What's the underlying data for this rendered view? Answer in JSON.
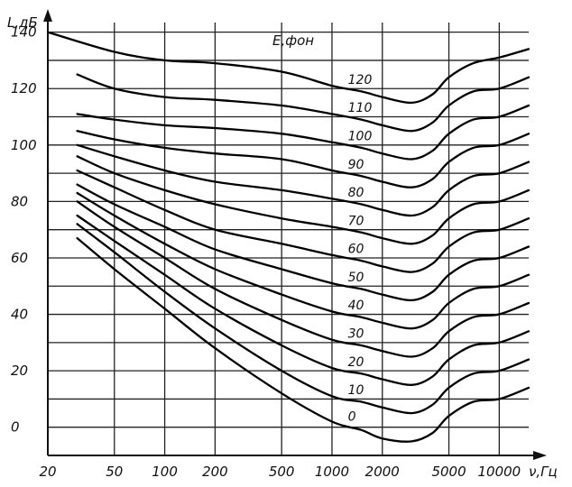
{
  "chart_data": {
    "type": "line",
    "title": "",
    "xlabel": "ν,Гц",
    "ylabel": "L,дБ",
    "legend_title": "E,фон",
    "x_scale": "log",
    "xlim": [
      20,
      15000
    ],
    "ylim": [
      -10,
      145
    ],
    "x_ticks": [
      20,
      50,
      100,
      200,
      500,
      1000,
      2000,
      5000,
      10000
    ],
    "y_ticks": [
      0,
      20,
      40,
      60,
      80,
      100,
      120,
      140
    ],
    "grid": true,
    "series": [
      {
        "name": "120",
        "x": [
          20,
          50,
          100,
          200,
          500,
          1000,
          1500,
          2000,
          3000,
          4000,
          5000,
          7000,
          10000,
          15000
        ],
        "y": [
          140,
          133,
          130,
          129,
          126,
          121,
          119,
          117,
          115,
          118,
          124,
          129,
          131,
          134
        ]
      },
      {
        "name": "110",
        "x": [
          30,
          50,
          100,
          200,
          500,
          1000,
          1500,
          2000,
          3000,
          4000,
          5000,
          7000,
          10000,
          15000
        ],
        "y": [
          125,
          120,
          117,
          116,
          114,
          111,
          109,
          107,
          105,
          108,
          114,
          119,
          120,
          124
        ]
      },
      {
        "name": "100",
        "x": [
          30,
          50,
          100,
          200,
          500,
          1000,
          1500,
          2000,
          3000,
          4000,
          5000,
          7000,
          10000,
          15000
        ],
        "y": [
          111,
          109,
          107,
          106,
          104,
          101,
          99,
          97,
          95,
          98,
          104,
          109,
          110,
          114
        ]
      },
      {
        "name": "90",
        "x": [
          30,
          50,
          100,
          200,
          500,
          1000,
          1500,
          2000,
          3000,
          4000,
          5000,
          7000,
          10000,
          15000
        ],
        "y": [
          105,
          102,
          99,
          97,
          95,
          91,
          89,
          87,
          85,
          88,
          94,
          99,
          100,
          104
        ]
      },
      {
        "name": "80",
        "x": [
          30,
          50,
          100,
          200,
          500,
          1000,
          1500,
          2000,
          3000,
          4000,
          5000,
          7000,
          10000,
          15000
        ],
        "y": [
          100,
          96,
          91,
          87,
          84,
          81,
          79,
          77,
          75,
          78,
          84,
          89,
          90,
          94
        ]
      },
      {
        "name": "70",
        "x": [
          30,
          50,
          100,
          200,
          500,
          1000,
          1500,
          2000,
          3000,
          4000,
          5000,
          7000,
          10000,
          15000
        ],
        "y": [
          96,
          90,
          84,
          79,
          74,
          71,
          69,
          67,
          65,
          68,
          74,
          79,
          80,
          84
        ]
      },
      {
        "name": "60",
        "x": [
          30,
          50,
          100,
          200,
          500,
          1000,
          1500,
          2000,
          3000,
          4000,
          5000,
          7000,
          10000,
          15000
        ],
        "y": [
          91,
          85,
          77,
          70,
          65,
          61,
          59,
          57,
          55,
          58,
          64,
          69,
          70,
          74
        ]
      },
      {
        "name": "50",
        "x": [
          30,
          50,
          100,
          200,
          500,
          1000,
          1500,
          2000,
          3000,
          4000,
          5000,
          7000,
          10000,
          15000
        ],
        "y": [
          86,
          79,
          71,
          63,
          56,
          51,
          49,
          47,
          45,
          48,
          54,
          59,
          60,
          64
        ]
      },
      {
        "name": "40",
        "x": [
          30,
          50,
          100,
          200,
          500,
          1000,
          1500,
          2000,
          3000,
          4000,
          5000,
          7000,
          10000,
          15000
        ],
        "y": [
          83,
          75,
          65,
          56,
          47,
          41,
          39,
          37,
          35,
          38,
          44,
          49,
          50,
          54
        ]
      },
      {
        "name": "30",
        "x": [
          30,
          50,
          100,
          200,
          500,
          1000,
          1500,
          2000,
          3000,
          4000,
          5000,
          7000,
          10000,
          15000
        ],
        "y": [
          80,
          71,
          60,
          49,
          38,
          31,
          29,
          27,
          25,
          28,
          34,
          39,
          40,
          44
        ]
      },
      {
        "name": "20",
        "x": [
          30,
          50,
          100,
          200,
          500,
          1000,
          1500,
          2000,
          3000,
          4000,
          5000,
          7000,
          10000,
          15000
        ],
        "y": [
          75,
          66,
          54,
          42,
          29,
          21,
          19,
          17,
          15,
          18,
          24,
          29,
          30,
          34
        ]
      },
      {
        "name": "10",
        "x": [
          30,
          50,
          100,
          200,
          500,
          1000,
          1500,
          2000,
          3000,
          4000,
          5000,
          7000,
          10000,
          15000
        ],
        "y": [
          72,
          62,
          48,
          35,
          20,
          11,
          9,
          7,
          5,
          8,
          14,
          19,
          20,
          24
        ]
      },
      {
        "name": "0",
        "x": [
          30,
          50,
          100,
          200,
          500,
          1000,
          1500,
          2000,
          3000,
          4000,
          5000,
          7000,
          10000,
          15000
        ],
        "y": [
          67,
          56,
          42,
          28,
          12,
          2,
          -1,
          -4,
          -5,
          -2,
          4,
          9,
          10,
          14
        ]
      }
    ]
  }
}
